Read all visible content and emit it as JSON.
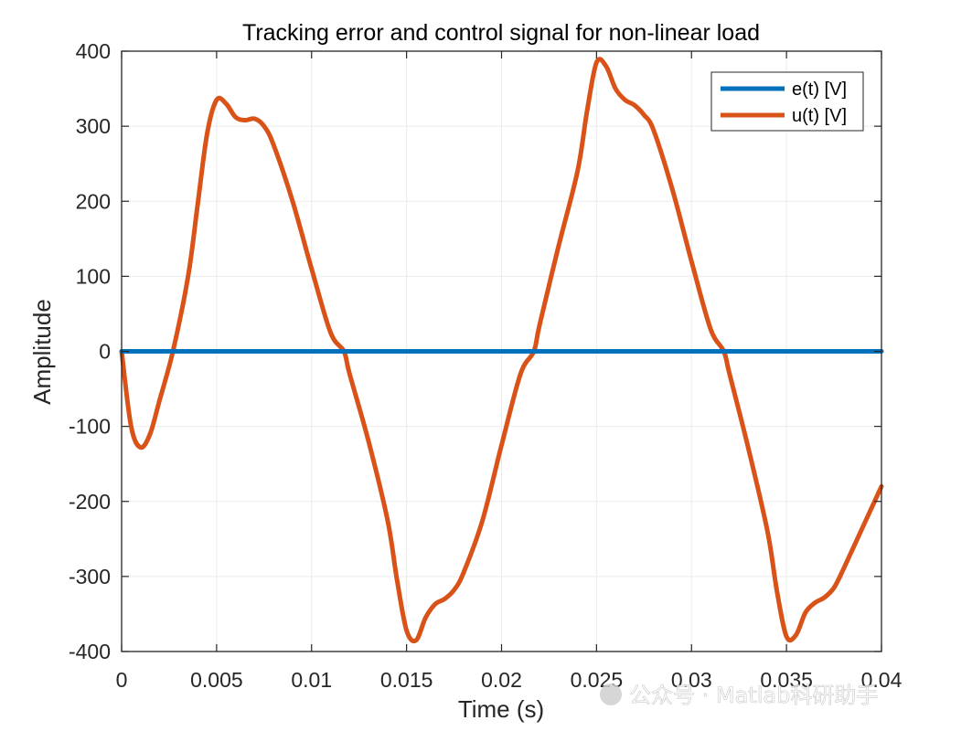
{
  "chart_data": {
    "type": "line",
    "title": "Tracking error and control signal for non-linear load",
    "xlabel": "Time (s)",
    "ylabel": "Amplitude",
    "xlim": [
      0,
      0.04
    ],
    "ylim": [
      -400,
      400
    ],
    "xticks": [
      0,
      0.005,
      0.01,
      0.015,
      0.02,
      0.025,
      0.03,
      0.035,
      0.04
    ],
    "xtick_labels": [
      "0",
      "0.005",
      "0.01",
      "0.015",
      "0.02",
      "0.025",
      "0.03",
      "0.035",
      "0.04"
    ],
    "yticks": [
      400,
      300,
      200,
      100,
      0,
      -100,
      -200,
      -300,
      -400
    ],
    "ytick_labels": [
      "400",
      "300",
      "200",
      "100",
      "0",
      "-100",
      "-200",
      "-300",
      "-400"
    ],
    "grid": true,
    "legend_position": "top-right",
    "series": [
      {
        "name": "e(t) [V]",
        "color": "#0072BD",
        "x": [
          0,
          0.04
        ],
        "y": [
          0,
          0
        ]
      },
      {
        "name": "u(t) [V]",
        "color": "#D95319",
        "x": [
          0,
          0.0005,
          0.001,
          0.0015,
          0.002,
          0.0027,
          0.0035,
          0.004,
          0.0045,
          0.005,
          0.0055,
          0.006,
          0.0065,
          0.007,
          0.0075,
          0.008,
          0.009,
          0.01,
          0.011,
          0.0117,
          0.012,
          0.013,
          0.014,
          0.0145,
          0.015,
          0.0155,
          0.016,
          0.0165,
          0.017,
          0.0175,
          0.018,
          0.019,
          0.02,
          0.021,
          0.0217,
          0.022,
          0.023,
          0.024,
          0.0245,
          0.025,
          0.0255,
          0.026,
          0.0265,
          0.027,
          0.0275,
          0.028,
          0.029,
          0.03,
          0.031,
          0.0317,
          0.032,
          0.033,
          0.034,
          0.0345,
          0.035,
          0.0355,
          0.036,
          0.0365,
          0.037,
          0.0375,
          0.038,
          0.039,
          0.04
        ],
        "y": [
          0,
          -100,
          -128,
          -110,
          -65,
          0,
          100,
          195,
          290,
          335,
          330,
          312,
          308,
          310,
          300,
          275,
          200,
          110,
          25,
          0,
          -30,
          -120,
          -225,
          -305,
          -372,
          -385,
          -355,
          -337,
          -330,
          -318,
          -295,
          -225,
          -125,
          -30,
          0,
          35,
          140,
          240,
          320,
          385,
          380,
          350,
          335,
          328,
          315,
          295,
          215,
          120,
          30,
          0,
          -30,
          -130,
          -240,
          -320,
          -380,
          -378,
          -348,
          -335,
          -328,
          -315,
          -290,
          -235,
          -180
        ]
      }
    ]
  },
  "watermark": "公众号 · Matlab科研助手"
}
